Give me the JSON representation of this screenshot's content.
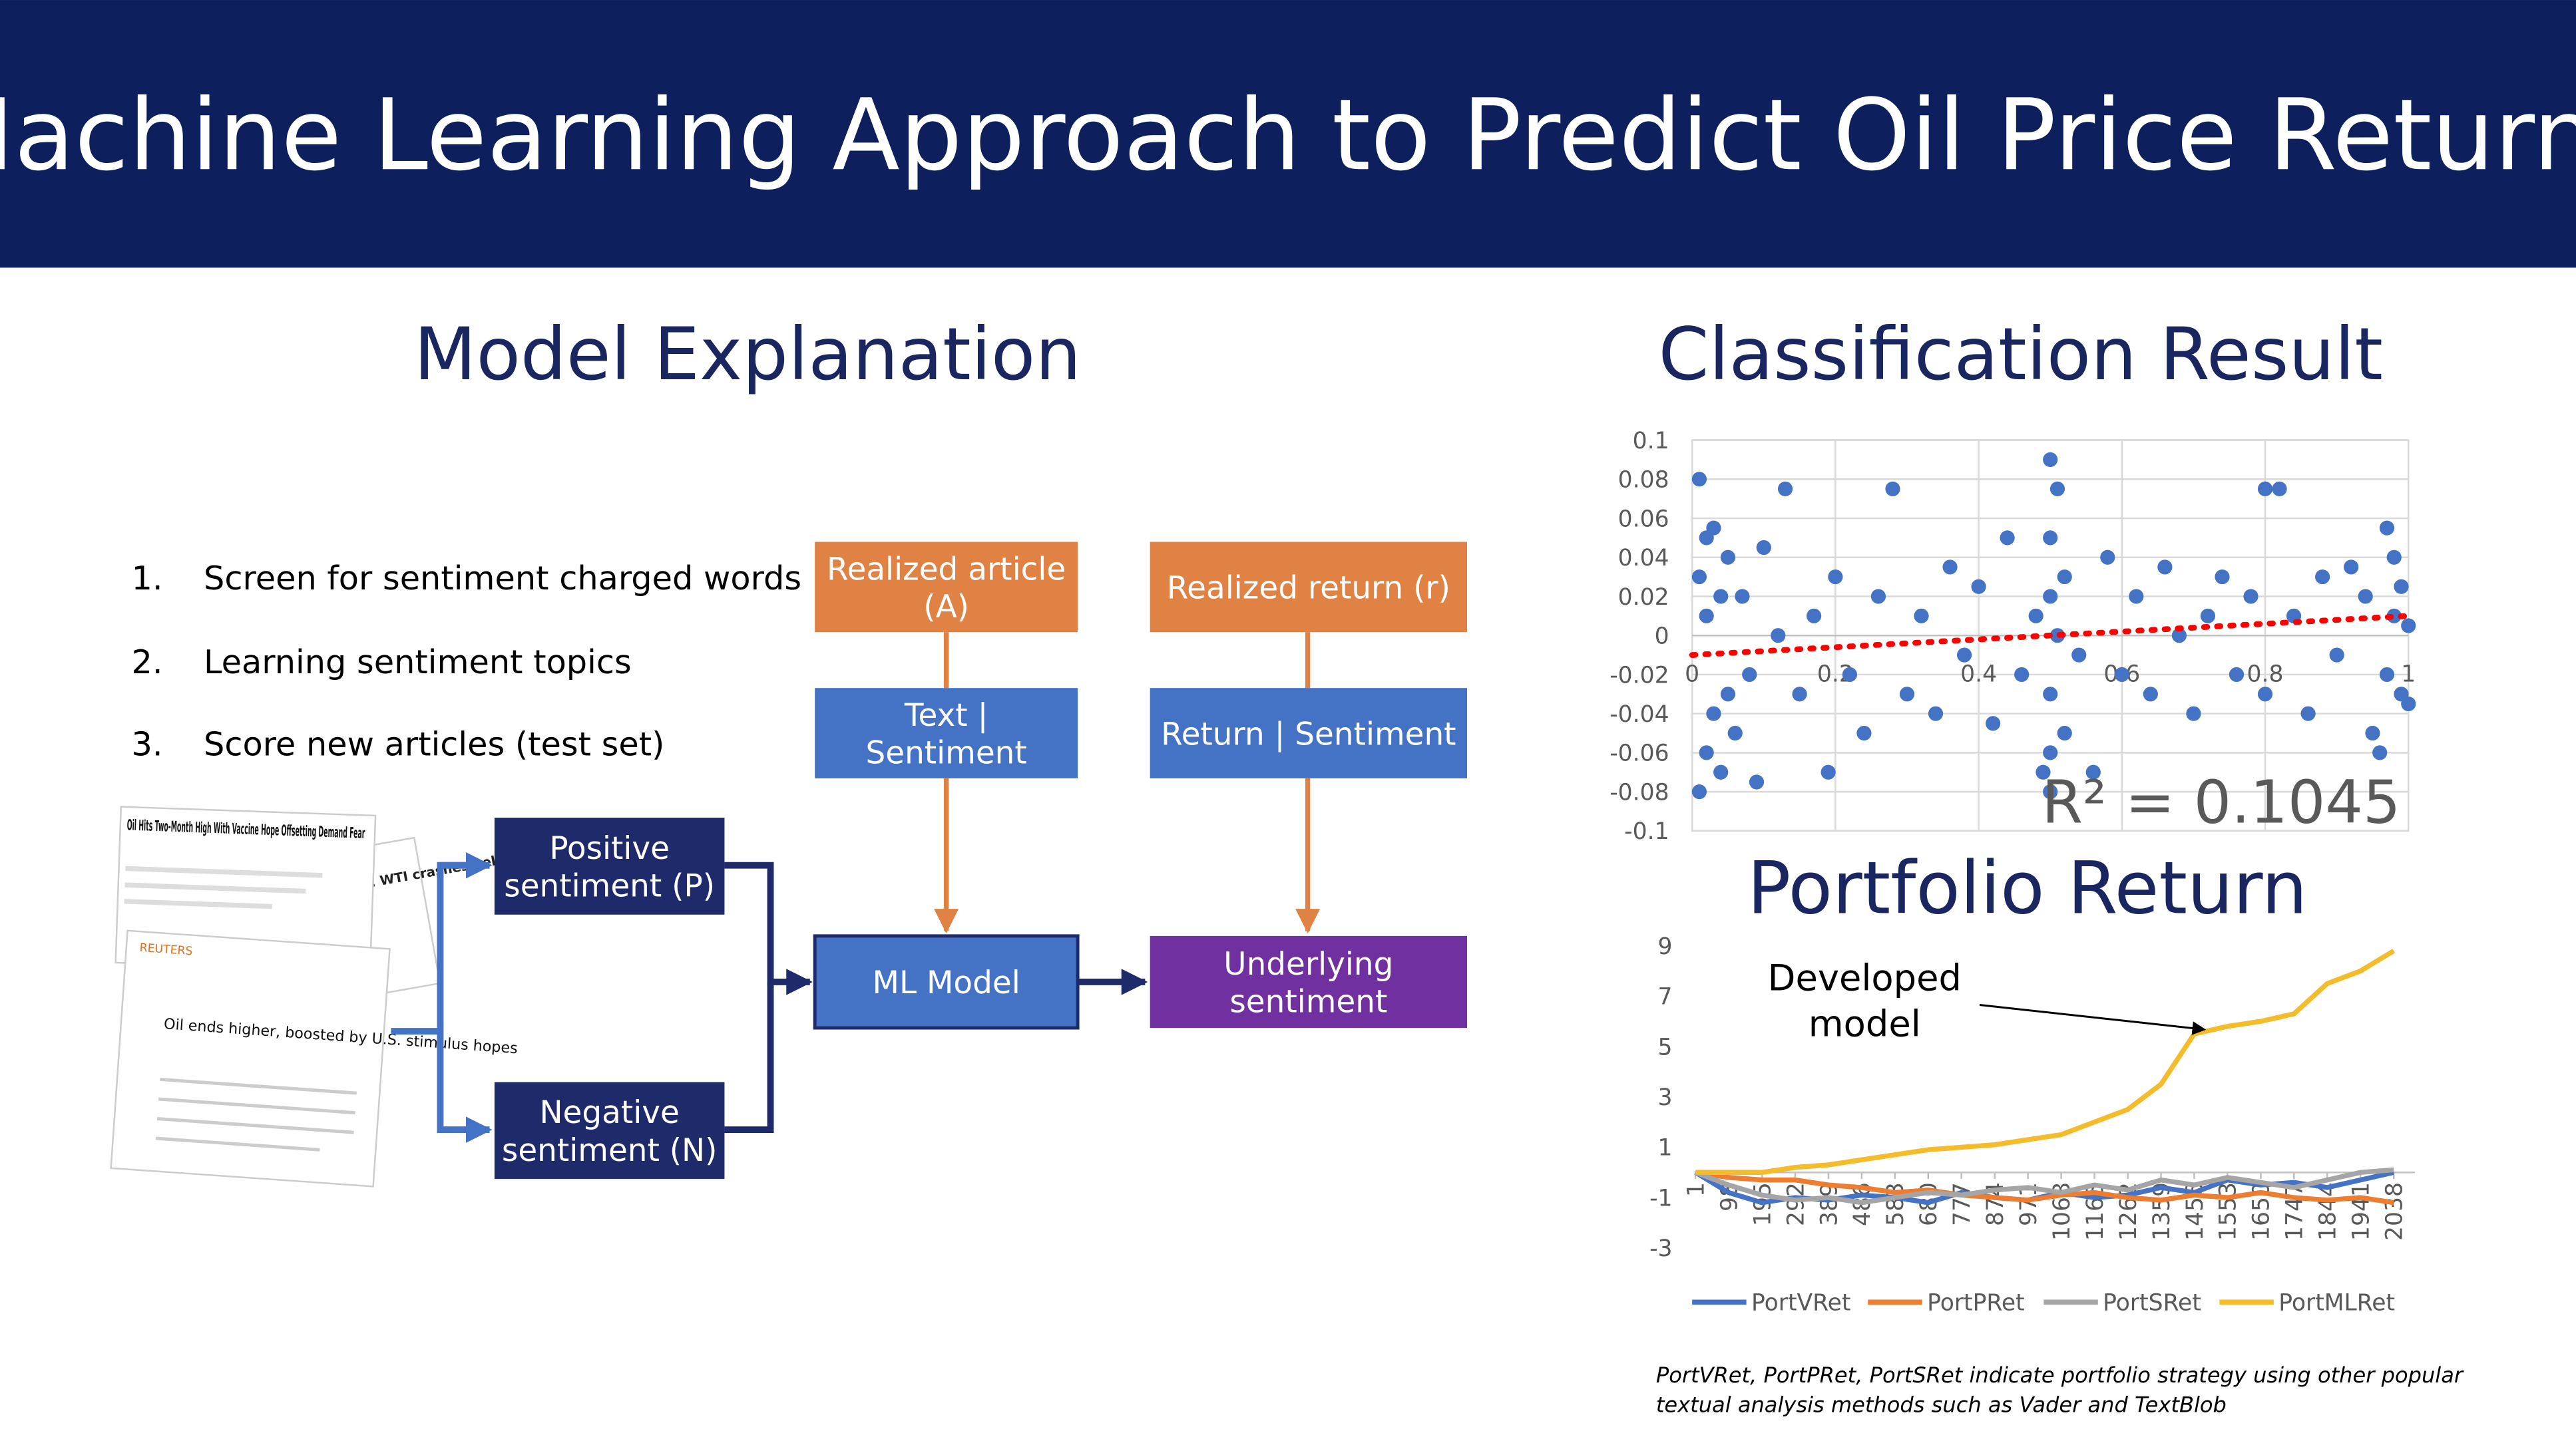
{
  "header": {
    "title": "Machine Learning Approach to Predict Oil Price Returns"
  },
  "model_explanation": {
    "title": "Model Explanation",
    "steps": [
      {
        "number": "1.",
        "text": "Screen for sentiment charged words"
      },
      {
        "number": "2.",
        "text": "Learning sentiment topics"
      },
      {
        "number": "3.",
        "text": "Score new articles (test set)"
      }
    ],
    "articles": {
      "headline_1": "Oil Hits Two-Month High With Vaccine Hope Offsetting Demand Fear",
      "headline_2": "Premarket stocks: WTI crashes below $0 a barrel",
      "source_3": "REUTERS",
      "headline_3": "Oil ends higher, boosted by U.S. stimulus hopes"
    },
    "nodes": {
      "realized_article": [
        "Realized article",
        "(A)"
      ],
      "text_sentiment": [
        "Text |",
        "Sentiment"
      ],
      "ml_model": [
        "ML Model"
      ],
      "realized_return": [
        "Realized return (r)"
      ],
      "return_sentiment": [
        "Return | Sentiment"
      ],
      "underlying_sentiment": [
        "Underlying",
        "sentiment"
      ],
      "positive_sentiment": [
        "Positive",
        "sentiment (P)"
      ],
      "negative_sentiment": [
        "Negative",
        "sentiment (N)"
      ]
    }
  },
  "classification_result": {
    "title": "Classification Result",
    "chart_data": {
      "type": "scatter",
      "color": "#4472c4",
      "x": [
        0.01,
        0.01,
        0.01,
        0.02,
        0.02,
        0.02,
        0.03,
        0.03,
        0.04,
        0.04,
        0.05,
        0.05,
        0.06,
        0.07,
        0.08,
        0.09,
        0.1,
        0.12,
        0.13,
        0.15,
        0.17,
        0.19,
        0.2,
        0.22,
        0.24,
        0.26,
        0.28,
        0.3,
        0.32,
        0.34,
        0.36,
        0.38,
        0.4,
        0.42,
        0.44,
        0.46,
        0.48,
        0.49,
        0.5,
        0.5,
        0.5,
        0.5,
        0.5,
        0.5,
        0.51,
        0.51,
        0.52,
        0.52,
        0.54,
        0.56,
        0.58,
        0.6,
        0.62,
        0.64,
        0.66,
        0.68,
        0.7,
        0.72,
        0.74,
        0.76,
        0.78,
        0.8,
        0.8,
        0.82,
        0.84,
        0.86,
        0.88,
        0.9,
        0.92,
        0.94,
        0.95,
        0.96,
        0.97,
        0.97,
        0.98,
        0.98,
        0.99,
        0.99,
        1,
        1
      ],
      "y": [
        0.08,
        -0.08,
        0.03,
        0.05,
        -0.06,
        0.01,
        0.055,
        -0.04,
        -0.07,
        0.02,
        0.04,
        -0.03,
        -0.05,
        0.02,
        -0.02,
        -0.075,
        0.045,
        0.0,
        0.075,
        -0.03,
        0.01,
        -0.07,
        0.03,
        -0.02,
        -0.05,
        0.02,
        0.075,
        -0.03,
        0.01,
        -0.04,
        0.035,
        -0.01,
        0.025,
        -0.045,
        0.05,
        -0.02,
        0.01,
        -0.07,
        0.09,
        0.05,
        0.02,
        -0.03,
        -0.06,
        -0.08,
        0.075,
        0.0,
        -0.05,
        0.03,
        -0.01,
        -0.07,
        0.04,
        -0.02,
        0.02,
        -0.03,
        0.035,
        0.0,
        -0.04,
        0.01,
        0.03,
        -0.02,
        0.02,
        0.075,
        -0.03,
        0.075,
        0.01,
        -0.04,
        0.03,
        -0.01,
        0.035,
        0.02,
        -0.05,
        -0.06,
        0.055,
        -0.02,
        0.04,
        0.01,
        -0.03,
        0.025,
        0.005,
        -0.035
      ],
      "trendline": {
        "x": [
          0,
          1
        ],
        "y": [
          -0.01,
          0.01
        ],
        "color": "#ff0000"
      },
      "xlim": [
        0,
        1
      ],
      "xticks": [
        0,
        0.2,
        0.4,
        0.6,
        0.8,
        1
      ],
      "ylim": [
        -0.1,
        0.1
      ],
      "yticks": [
        0.1,
        0.08,
        0.06,
        0.04,
        0.02,
        0,
        -0.02,
        -0.04,
        -0.06,
        -0.08,
        -0.1
      ],
      "grid": true,
      "annotation": "R² = 0.1045"
    }
  },
  "portfolio_return": {
    "title": "Portfolio Return",
    "chart_data": {
      "type": "line",
      "x": [
        1,
        98,
        195,
        292,
        389,
        486,
        583,
        680,
        777,
        874,
        971,
        1068,
        1165,
        1262,
        1359,
        1456,
        1553,
        1650,
        1747,
        1844,
        1941,
        2038
      ],
      "xlim": [
        1,
        2100
      ],
      "xticks": [
        1,
        98,
        195,
        292,
        389,
        486,
        583,
        680,
        777,
        874,
        971,
        1068,
        1165,
        1262,
        1359,
        1456,
        1553,
        1650,
        1747,
        1844,
        1941,
        2038
      ],
      "ylim": [
        -3,
        9
      ],
      "yticks": [
        9,
        7,
        5,
        3,
        1,
        -1,
        -3
      ],
      "series": [
        {
          "name": "PortVRet",
          "color": "#4472c4",
          "values": [
            0,
            -0.8,
            -1.2,
            -1.0,
            -1.1,
            -0.9,
            -1.0,
            -1.2,
            -0.8,
            -1.0,
            -1.1,
            -0.8,
            -1.0,
            -0.9,
            -0.6,
            -0.8,
            -0.3,
            -0.5,
            -0.4,
            -0.6,
            -0.3,
            0
          ]
        },
        {
          "name": "PortPRet",
          "color": "#ed7d31",
          "values": [
            0,
            -0.2,
            -0.3,
            -0.3,
            -0.5,
            -0.6,
            -0.8,
            -0.7,
            -0.9,
            -1.0,
            -1.1,
            -0.9,
            -0.8,
            -1.0,
            -1.1,
            -0.9,
            -1.0,
            -0.8,
            -1.0,
            -1.1,
            -1.0,
            -1.2
          ]
        },
        {
          "name": "PortSRet",
          "color": "#a5a5a5",
          "values": [
            0,
            -0.5,
            -0.9,
            -1.1,
            -1.0,
            -1.2,
            -1.0,
            -0.8,
            -0.9,
            -0.7,
            -0.6,
            -0.8,
            -0.5,
            -0.7,
            -0.3,
            -0.5,
            -0.2,
            -0.4,
            -0.6,
            -0.3,
            0,
            0.1
          ]
        },
        {
          "name": "PortMLRet",
          "color": "#f4bb2a",
          "values": [
            0,
            0,
            0,
            0.2,
            0.3,
            0.5,
            0.7,
            0.9,
            1.0,
            1.1,
            1.3,
            1.5,
            2.0,
            2.5,
            3.5,
            5.5,
            5.8,
            6.0,
            6.3,
            7.5,
            8.0,
            8.8
          ]
        }
      ],
      "legend": "bottom",
      "annotation": [
        "Developed",
        "model"
      ]
    }
  },
  "footnote": [
    "PortVRet, PortPRet, PortSRet indicate portfolio strategy using other popular",
    "textual analysis methods such as Vader and TextBlob"
  ]
}
